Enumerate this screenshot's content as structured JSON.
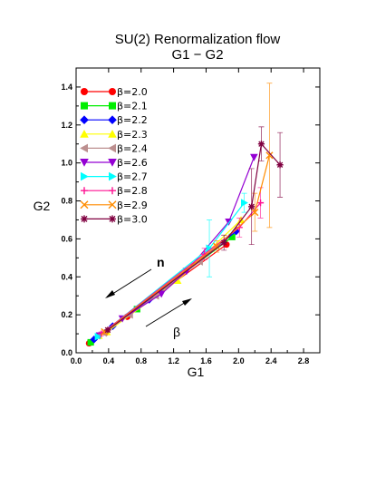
{
  "chart_data": {
    "type": "line",
    "title": "SU(2) Renormalization flow",
    "subtitle": "G1 − G2",
    "xlabel": "G1",
    "ylabel": "G2",
    "xlim": [
      0,
      3.0
    ],
    "ylim": [
      0,
      1.5
    ],
    "xticks": [
      "0.0",
      "0.4",
      "0.8",
      "1.2",
      "1.6",
      "2.0",
      "2.4",
      "2.8"
    ],
    "yticks": [
      "0.0",
      "0.2",
      "0.4",
      "0.6",
      "0.8",
      "1.0",
      "1.2",
      "1.4"
    ],
    "grid": false,
    "legend_position": "top-left",
    "annotations": [
      {
        "text": "n",
        "direction": "down-left"
      },
      {
        "text": "β",
        "direction": "up-right"
      }
    ],
    "series": [
      {
        "name": "β=2.0",
        "color": "#ff0000",
        "marker": "circle",
        "points": [
          [
            0.16,
            0.05
          ],
          [
            0.63,
            0.19
          ],
          [
            1.85,
            0.57
          ]
        ]
      },
      {
        "name": "β=2.1",
        "color": "#00ee00",
        "marker": "square",
        "points": [
          [
            0.18,
            0.055
          ],
          [
            0.75,
            0.23
          ],
          [
            1.92,
            0.61
          ]
        ]
      },
      {
        "name": "β=2.2",
        "color": "#0000ff",
        "marker": "diamond",
        "points": [
          [
            0.22,
            0.07
          ],
          [
            0.45,
            0.14
          ],
          [
            0.9,
            0.28
          ],
          [
            1.97,
            0.64
          ]
        ]
      },
      {
        "name": "β=2.3",
        "color": "#ffff00",
        "marker": "triangle-up",
        "points": [
          [
            0.28,
            0.09
          ],
          [
            0.38,
            0.11
          ],
          [
            1.25,
            0.38
          ],
          [
            2.03,
            0.7
          ]
        ]
      },
      {
        "name": "β=2.4",
        "color": "#bc8f8f",
        "marker": "triangle-left",
        "points": [
          [
            0.34,
            0.105
          ],
          [
            0.66,
            0.2
          ],
          [
            0.98,
            0.3
          ],
          [
            1.52,
            0.48
          ]
        ]
      },
      {
        "name": "β=2.6",
        "color": "#9400d3",
        "marker": "triangle-down",
        "points": [
          [
            0.29,
            0.09
          ],
          [
            0.57,
            0.18
          ],
          [
            1.05,
            0.31
          ],
          [
            1.36,
            0.43
          ],
          [
            1.88,
            0.69
          ],
          [
            2.19,
            1.03
          ]
        ]
      },
      {
        "name": "β=2.7",
        "color": "#00ffff",
        "marker": "triangle-right",
        "points": [
          [
            0.27,
            0.085
          ],
          [
            1.64,
            0.55
          ],
          [
            2.07,
            0.79
          ]
        ],
        "errors": [
          0.01,
          0.15,
          0.05
        ]
      },
      {
        "name": "β=2.8",
        "color": "#ff1493",
        "marker": "plus",
        "points": [
          [
            0.31,
            0.1
          ],
          [
            1.58,
            0.52
          ],
          [
            2.01,
            0.66
          ],
          [
            2.27,
            0.79
          ]
        ],
        "errors": [
          0.01,
          0.03,
          0.05,
          0.08
        ]
      },
      {
        "name": "β=2.9",
        "color": "#ff8c00",
        "marker": "cross",
        "points": [
          [
            0.35,
            0.11
          ],
          [
            1.73,
            0.56
          ],
          [
            2.2,
            0.74
          ],
          [
            2.38,
            1.04
          ]
        ],
        "errors": [
          0.01,
          0.03,
          0.1,
          0.38
        ]
      },
      {
        "name": "β=3.0",
        "color": "#800040",
        "marker": "asterisk",
        "points": [
          [
            0.39,
            0.12
          ],
          [
            1.82,
            0.58
          ],
          [
            2.16,
            0.77
          ],
          [
            2.28,
            1.1
          ],
          [
            2.51,
            0.99
          ]
        ],
        "errors": [
          0.01,
          0.04,
          0.2,
          0.09,
          0.17
        ]
      }
    ]
  }
}
